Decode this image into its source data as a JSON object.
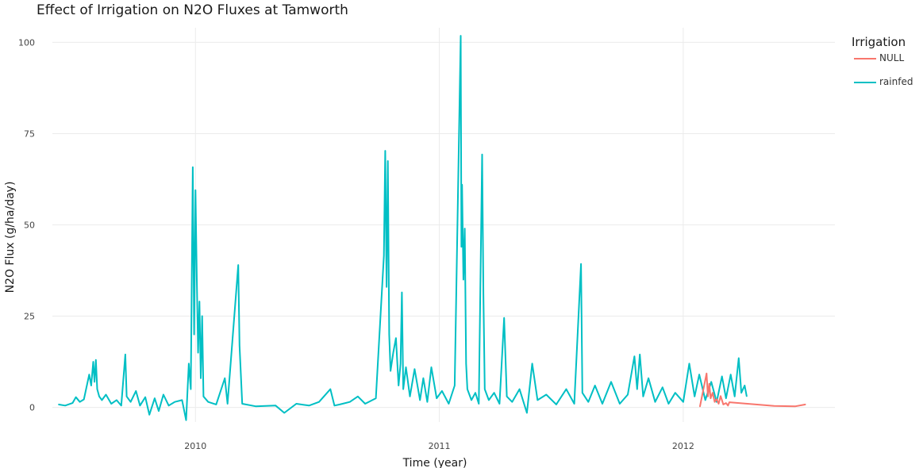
{
  "chart_data": {
    "type": "line",
    "title": "Effect of Irrigation on N2O Fluxes at Tamworth",
    "xlabel": "Time (year)",
    "ylabel": "N2O Flux (g/ha/day)",
    "xlim": [
      "2009-05-01",
      "2012-08-15"
    ],
    "ylim": [
      -4,
      104
    ],
    "x_ticks": [
      "2010",
      "2011",
      "2012"
    ],
    "x_tick_dates": [
      "2010-01-01",
      "2011-01-01",
      "2012-01-01"
    ],
    "y_ticks": [
      0,
      25,
      50,
      75,
      100
    ],
    "grid": true,
    "legend": {
      "title": "Irrigation",
      "placement": "right"
    },
    "series": [
      {
        "name": "NULL",
        "color": "#F8766D",
        "points": [
          [
            "2012-01-26",
            0.2
          ],
          [
            "2012-02-05",
            9.3
          ],
          [
            "2012-02-07",
            3.0
          ],
          [
            "2012-02-09",
            6.5
          ],
          [
            "2012-02-11",
            2.5
          ],
          [
            "2012-02-14",
            4.0
          ],
          [
            "2012-02-17",
            1.5
          ],
          [
            "2012-02-20",
            2.3
          ],
          [
            "2012-02-23",
            1.0
          ],
          [
            "2012-02-26",
            3.1
          ],
          [
            "2012-03-01",
            0.8
          ],
          [
            "2012-03-05",
            1.2
          ],
          [
            "2012-03-08",
            0.5
          ],
          [
            "2012-03-10",
            1.4
          ],
          [
            "2012-05-16",
            0.4
          ],
          [
            "2012-06-17",
            0.3
          ],
          [
            "2012-07-02",
            0.8
          ]
        ]
      },
      {
        "name": "rainfed",
        "color": "#00BFC4",
        "points": [
          [
            "2009-06-10",
            0.8
          ],
          [
            "2009-06-20",
            0.5
          ],
          [
            "2009-07-01",
            1.2
          ],
          [
            "2009-07-06",
            2.8
          ],
          [
            "2009-07-12",
            1.5
          ],
          [
            "2009-07-18",
            2.2
          ],
          [
            "2009-07-26",
            9.0
          ],
          [
            "2009-07-29",
            6.0
          ],
          [
            "2009-08-01",
            12.5
          ],
          [
            "2009-08-03",
            7.0
          ],
          [
            "2009-08-05",
            13.0
          ],
          [
            "2009-08-07",
            5.0
          ],
          [
            "2009-08-10",
            3.0
          ],
          [
            "2009-08-14",
            2.0
          ],
          [
            "2009-08-20",
            3.5
          ],
          [
            "2009-08-28",
            1.0
          ],
          [
            "2009-09-05",
            2.0
          ],
          [
            "2009-09-12",
            0.5
          ],
          [
            "2009-09-18",
            14.5
          ],
          [
            "2009-09-20",
            3.0
          ],
          [
            "2009-09-26",
            1.5
          ],
          [
            "2009-10-04",
            4.5
          ],
          [
            "2009-10-10",
            0.5
          ],
          [
            "2009-10-18",
            2.8
          ],
          [
            "2009-10-24",
            -2.0
          ],
          [
            "2009-11-01",
            2.5
          ],
          [
            "2009-11-07",
            -1.0
          ],
          [
            "2009-11-14",
            3.5
          ],
          [
            "2009-11-22",
            0.5
          ],
          [
            "2009-12-01",
            1.5
          ],
          [
            "2009-12-12",
            2.0
          ],
          [
            "2009-12-18",
            -3.5
          ],
          [
            "2009-12-22",
            12.0
          ],
          [
            "2009-12-25",
            5.0
          ],
          [
            "2009-12-28",
            65.8
          ],
          [
            "2009-12-30",
            20.0
          ],
          [
            "2010-01-01",
            59.5
          ],
          [
            "2010-01-03",
            35.0
          ],
          [
            "2010-01-05",
            15.0
          ],
          [
            "2010-01-07",
            29.0
          ],
          [
            "2010-01-09",
            8.0
          ],
          [
            "2010-01-11",
            25.0
          ],
          [
            "2010-01-13",
            3.0
          ],
          [
            "2010-01-20",
            1.5
          ],
          [
            "2010-02-01",
            0.8
          ],
          [
            "2010-02-14",
            8.0
          ],
          [
            "2010-02-18",
            1.0
          ],
          [
            "2010-03-06",
            39.0
          ],
          [
            "2010-03-08",
            17.0
          ],
          [
            "2010-03-12",
            1.0
          ],
          [
            "2010-04-01",
            0.3
          ],
          [
            "2010-05-01",
            0.5
          ],
          [
            "2010-05-14",
            -1.5
          ],
          [
            "2010-06-01",
            1.0
          ],
          [
            "2010-06-20",
            0.5
          ],
          [
            "2010-07-05",
            1.5
          ],
          [
            "2010-07-22",
            5.0
          ],
          [
            "2010-07-28",
            0.5
          ],
          [
            "2010-08-05",
            0.8
          ],
          [
            "2010-08-20",
            1.5
          ],
          [
            "2010-09-01",
            3.0
          ],
          [
            "2010-09-12",
            1.0
          ],
          [
            "2010-09-28",
            2.5
          ],
          [
            "2010-10-10",
            41.5
          ],
          [
            "2010-10-12",
            70.3
          ],
          [
            "2010-10-14",
            33.0
          ],
          [
            "2010-10-16",
            67.5
          ],
          [
            "2010-10-18",
            20.0
          ],
          [
            "2010-10-20",
            10.0
          ],
          [
            "2010-10-24",
            15.0
          ],
          [
            "2010-10-28",
            19.0
          ],
          [
            "2010-11-01",
            6.0
          ],
          [
            "2010-11-04",
            12.0
          ],
          [
            "2010-11-06",
            31.5
          ],
          [
            "2010-11-08",
            5.0
          ],
          [
            "2010-11-12",
            11.0
          ],
          [
            "2010-11-18",
            3.0
          ],
          [
            "2010-11-25",
            10.5
          ],
          [
            "2010-12-03",
            2.0
          ],
          [
            "2010-12-08",
            8.0
          ],
          [
            "2010-12-14",
            1.5
          ],
          [
            "2010-12-20",
            11.0
          ],
          [
            "2010-12-28",
            2.5
          ],
          [
            "2011-01-05",
            4.5
          ],
          [
            "2011-01-15",
            1.0
          ],
          [
            "2011-01-24",
            6.0
          ],
          [
            "2011-02-02",
            101.8
          ],
          [
            "2011-02-03",
            44.0
          ],
          [
            "2011-02-04",
            61.0
          ],
          [
            "2011-02-06",
            35.0
          ],
          [
            "2011-02-08",
            49.0
          ],
          [
            "2011-02-10",
            12.0
          ],
          [
            "2011-02-12",
            5.0
          ],
          [
            "2011-02-18",
            2.0
          ],
          [
            "2011-02-24",
            4.0
          ],
          [
            "2011-03-01",
            1.0
          ],
          [
            "2011-03-06",
            69.3
          ],
          [
            "2011-03-08",
            31.0
          ],
          [
            "2011-03-10",
            5.0
          ],
          [
            "2011-03-16",
            2.0
          ],
          [
            "2011-03-24",
            4.0
          ],
          [
            "2011-04-01",
            1.0
          ],
          [
            "2011-04-08",
            24.5
          ],
          [
            "2011-04-12",
            3.0
          ],
          [
            "2011-04-20",
            1.5
          ],
          [
            "2011-05-01",
            5.0
          ],
          [
            "2011-05-12",
            -1.5
          ],
          [
            "2011-05-20",
            12.0
          ],
          [
            "2011-05-28",
            2.0
          ],
          [
            "2011-06-10",
            3.5
          ],
          [
            "2011-06-25",
            0.8
          ],
          [
            "2011-07-10",
            5.0
          ],
          [
            "2011-07-22",
            1.0
          ],
          [
            "2011-08-01",
            39.3
          ],
          [
            "2011-08-03",
            4.0
          ],
          [
            "2011-08-12",
            1.5
          ],
          [
            "2011-08-22",
            6.0
          ],
          [
            "2011-09-02",
            1.0
          ],
          [
            "2011-09-15",
            7.0
          ],
          [
            "2011-09-28",
            1.0
          ],
          [
            "2011-10-10",
            3.5
          ],
          [
            "2011-10-20",
            14.0
          ],
          [
            "2011-10-24",
            5.0
          ],
          [
            "2011-10-28",
            14.5
          ],
          [
            "2011-11-02",
            3.0
          ],
          [
            "2011-11-10",
            8.0
          ],
          [
            "2011-11-20",
            1.5
          ],
          [
            "2011-12-01",
            5.5
          ],
          [
            "2011-12-10",
            1.0
          ],
          [
            "2011-12-20",
            4.0
          ],
          [
            "2012-01-01",
            1.5
          ],
          [
            "2012-01-10",
            12.0
          ],
          [
            "2012-01-18",
            3.0
          ],
          [
            "2012-01-25",
            9.0
          ],
          [
            "2012-02-03",
            2.0
          ],
          [
            "2012-02-12",
            7.0
          ],
          [
            "2012-02-20",
            1.5
          ],
          [
            "2012-02-28",
            8.5
          ],
          [
            "2012-03-05",
            2.5
          ],
          [
            "2012-03-12",
            9.0
          ],
          [
            "2012-03-18",
            3.0
          ],
          [
            "2012-03-24",
            13.5
          ],
          [
            "2012-03-28",
            4.0
          ],
          [
            "2012-04-02",
            6.0
          ],
          [
            "2012-04-05",
            3.0
          ]
        ]
      }
    ]
  }
}
